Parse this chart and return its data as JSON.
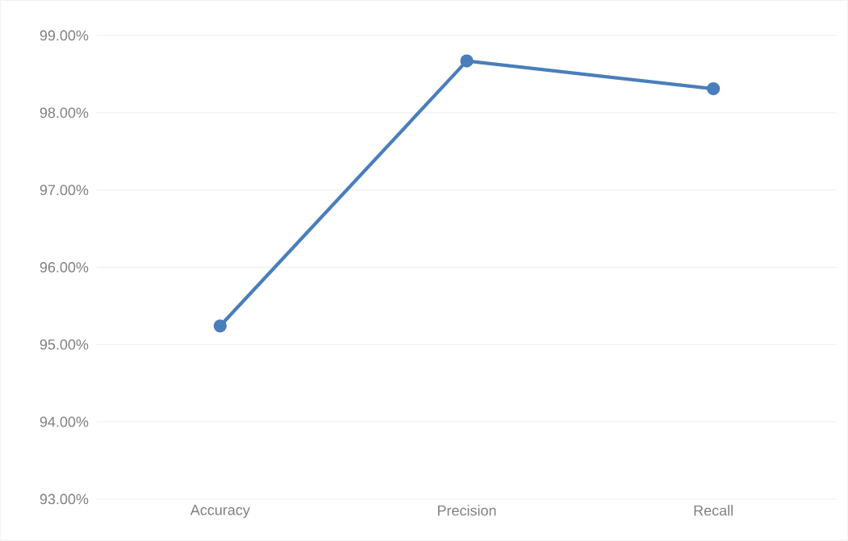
{
  "chart_data": {
    "type": "line",
    "categories": [
      "Accuracy",
      "Precision",
      "Recall"
    ],
    "values": [
      95.24,
      98.67,
      98.31
    ],
    "color": "#4a7ebb",
    "ylim": [
      93,
      99
    ],
    "yticks": [
      {
        "value": 93,
        "label": "93.00%"
      },
      {
        "value": 94,
        "label": "94.00%"
      },
      {
        "value": 95,
        "label": "95.00%"
      },
      {
        "value": 96,
        "label": "96.00%"
      },
      {
        "value": 97,
        "label": "97.00%"
      },
      {
        "value": 98,
        "label": "98.00%"
      },
      {
        "value": 99,
        "label": "99.00%"
      }
    ],
    "grid": "y",
    "marker": "circle",
    "line_style": "solid"
  }
}
